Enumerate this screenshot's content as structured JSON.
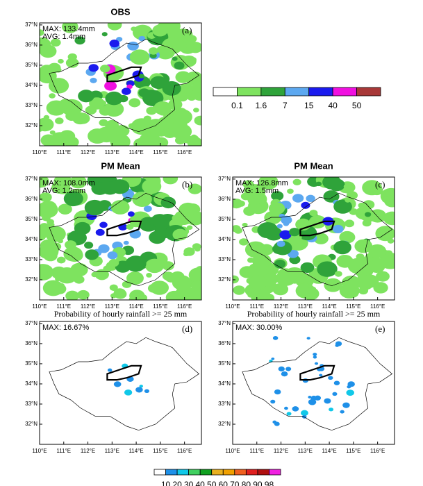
{
  "panels": [
    {
      "title": "OBS",
      "label": "(a)",
      "max": "MAX: 133.4mm",
      "avg": "AVG: 1.4mm"
    },
    {
      "title": "PM Mean",
      "label": "(b)",
      "max": "MAX: 108.0mm",
      "avg": "AVG: 1.2mm"
    },
    {
      "title": "PM Mean",
      "label": "(c)",
      "max": "MAX: 126.8mm",
      "avg": "AVG: 1.5mm"
    },
    {
      "subtitle": "Probability of hourly rainfall >= 25 mm",
      "label": "(d)",
      "max": "MAX: 16.67%"
    },
    {
      "subtitle": "Probability of hourly rainfall >= 25 mm",
      "label": "(e)",
      "max": "MAX: 30.00%"
    }
  ],
  "lat_labels": [
    "37°N",
    "36°N",
    "35°N",
    "34°N",
    "33°N",
    "32°N"
  ],
  "lon_labels": [
    "110°E",
    "111°E",
    "112°E",
    "113°E",
    "114°E",
    "115°E",
    "116°E"
  ],
  "colorbar_rain": {
    "labels": [
      "0.1",
      "1.6",
      "7",
      "15",
      "40",
      "50"
    ],
    "colors": [
      "#ffffff",
      "#7ee35f",
      "#2fa33a",
      "#5ca8f0",
      "#1a1aee",
      "#f010e0",
      "#a83838"
    ]
  },
  "colorbar_prob": {
    "labels": [
      "10",
      "20",
      "30",
      "40",
      "50",
      "60",
      "70",
      "80",
      "90",
      "98"
    ],
    "colors": [
      "#ffffff",
      "#1e90e8",
      "#10c8e8",
      "#40d060",
      "#10a020",
      "#e8b020",
      "#f0a000",
      "#f06020",
      "#e02020",
      "#b01010",
      "#f020e0"
    ]
  }
}
